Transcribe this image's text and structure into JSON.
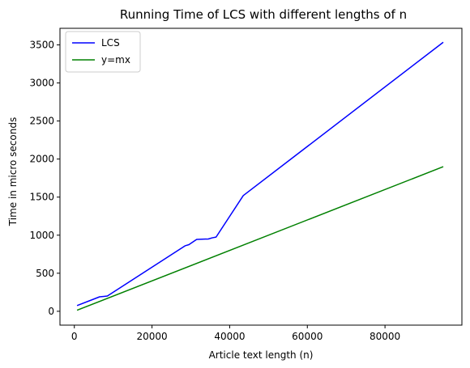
{
  "chart_data": {
    "type": "line",
    "title": "Running Time of LCS with different lengths of n",
    "xlabel": "Article text length (n)",
    "ylabel": "Time in micro seconds",
    "xlim": [
      -3700,
      99800
    ],
    "ylim": [
      -182,
      3718
    ],
    "xticks": [
      {
        "value": 20000,
        "label": "20000"
      },
      {
        "value": 40000,
        "label": "40000"
      },
      {
        "value": 60000,
        "label": "60000"
      },
      {
        "value": 80000,
        "label": "80000"
      },
      {
        "value": 0,
        "label": "0"
      }
    ],
    "yticks": [
      {
        "value": 0,
        "label": "0"
      },
      {
        "value": 500,
        "label": "500"
      },
      {
        "value": 1000,
        "label": "1000"
      },
      {
        "value": 1500,
        "label": "1500"
      },
      {
        "value": 2000,
        "label": "2000"
      },
      {
        "value": 2500,
        "label": "2500"
      },
      {
        "value": 3000,
        "label": "3000"
      },
      {
        "value": 3500,
        "label": "3500"
      }
    ],
    "legend_position": "top-left",
    "grid": false,
    "series": [
      {
        "name": "LCS",
        "color": "#0000ff",
        "x": [
          700,
          5500,
          6500,
          8500,
          28500,
          29500,
          31500,
          34500,
          35500,
          36500,
          43500,
          95000
        ],
        "y": [
          75,
          170,
          190,
          200,
          860,
          875,
          945,
          950,
          965,
          975,
          1520,
          3535
        ]
      },
      {
        "name": "y=mx",
        "color": "#008000",
        "x": [
          700,
          95000
        ],
        "y": [
          14,
          1900
        ]
      }
    ]
  }
}
